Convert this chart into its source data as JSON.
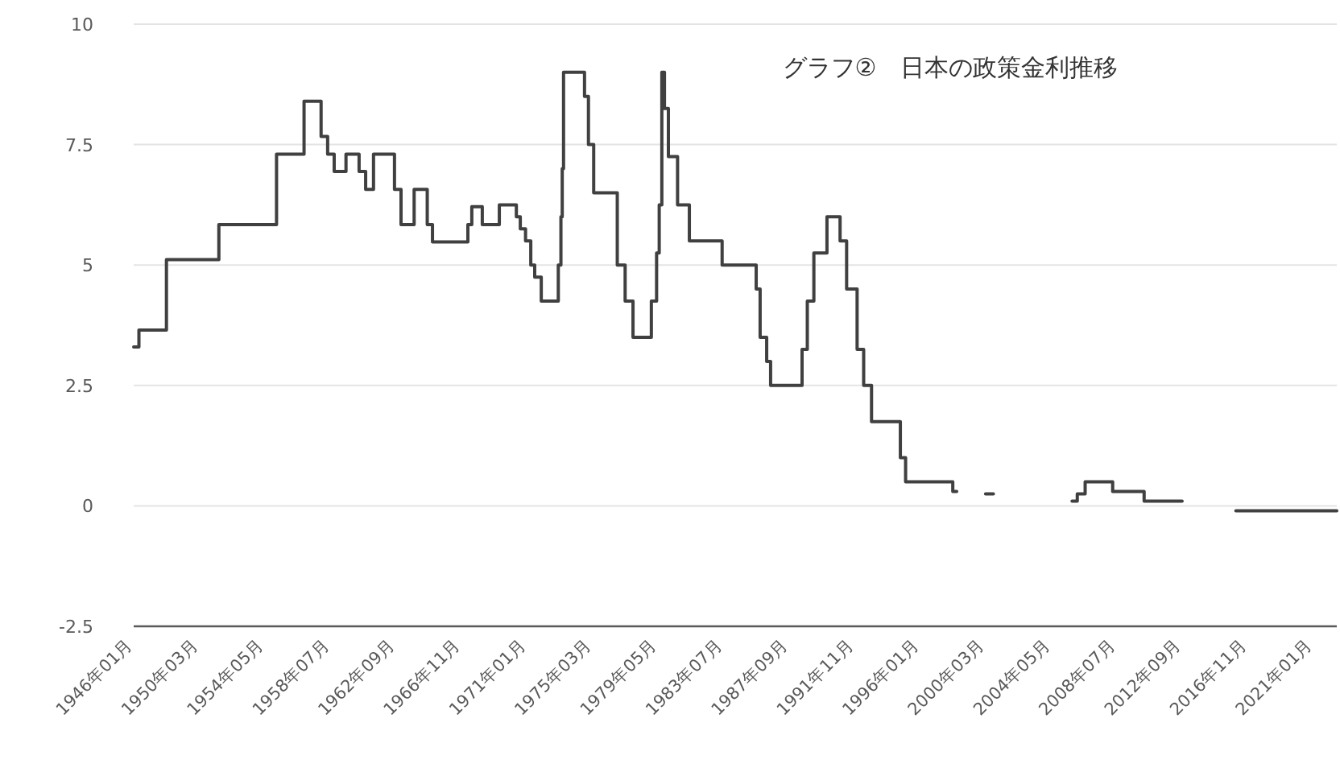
{
  "chart_data": {
    "type": "step",
    "title": "グラフ②　日本の政策金利推移",
    "x": [
      "1946-01",
      "1946-05",
      "1948-02",
      "1951-06",
      "1955-02",
      "1956-11",
      "1957-12",
      "1958-05",
      "1958-10",
      "1959-07",
      "1960-05",
      "1960-10",
      "1961-04",
      "1962-08",
      "1963-01",
      "1963-11",
      "1964-09",
      "1965-01",
      "1967-04",
      "1967-07",
      "1968-03",
      "1969-04",
      "1970-05",
      "1970-08",
      "1970-12",
      "1971-04",
      "1971-07",
      "1971-12",
      "1973-01",
      "1973-03",
      "1973-04",
      "1973-05",
      "1974-09",
      "1974-12",
      "1975-04",
      "1976-10",
      "1977-04",
      "1977-10",
      "1978-12",
      "1979-04",
      "1979-06",
      "1979-08",
      "1979-10",
      "1980-01",
      "1980-08",
      "1981-05",
      "1983-06",
      "1985-08",
      "1985-11",
      "1986-04",
      "1986-07",
      "1988-07",
      "1988-11",
      "1989-04",
      "1990-02",
      "1990-12",
      "1991-05",
      "1992-01",
      "1992-06",
      "1992-12",
      "1994-10",
      "1995-02",
      "1998-02",
      "1998-05",
      "2000-03",
      "2000-09",
      "2005-09",
      "2006-01",
      "2006-07",
      "2008-04",
      "2010-04",
      "2012-09",
      "2016-02",
      "2022-07"
    ],
    "series": [
      {
        "color": "#404040",
        "values": [
          3.3,
          3.65,
          5.11,
          5.84,
          7.3,
          8.4,
          7.67,
          7.3,
          6.94,
          7.3,
          6.94,
          6.57,
          7.3,
          6.57,
          5.84,
          6.57,
          5.84,
          5.48,
          5.84,
          6.21,
          5.84,
          6.25,
          6.0,
          5.75,
          5.5,
          5.0,
          4.75,
          4.25,
          5.0,
          6.0,
          7.0,
          9.0,
          8.5,
          7.5,
          6.5,
          5.0,
          4.25,
          3.5,
          4.25,
          5.25,
          6.25,
          9.0,
          8.25,
          7.25,
          6.25,
          5.5,
          5.0,
          4.5,
          3.5,
          3.0,
          2.5,
          3.25,
          4.25,
          5.25,
          6.0,
          5.5,
          4.5,
          3.25,
          2.5,
          1.75,
          1.0,
          0.5,
          0.3,
          null,
          0.25,
          null,
          0.1,
          0.25,
          0.5,
          0.3,
          0.1,
          null,
          -0.1,
          -0.1
        ]
      }
    ],
    "xlim": [
      "1946-01",
      "2022-07"
    ],
    "xticks": [
      {
        "value": "1946-01",
        "label": "1946年01月"
      },
      {
        "value": "1950-03",
        "label": "1950年03月"
      },
      {
        "value": "1954-05",
        "label": "1954年05月"
      },
      {
        "value": "1958-07",
        "label": "1958年07月"
      },
      {
        "value": "1962-09",
        "label": "1962年09月"
      },
      {
        "value": "1966-11",
        "label": "1966年11月"
      },
      {
        "value": "1971-01",
        "label": "1971年01月"
      },
      {
        "value": "1975-03",
        "label": "1975年03月"
      },
      {
        "value": "1979-05",
        "label": "1979年05月"
      },
      {
        "value": "1983-07",
        "label": "1983年07月"
      },
      {
        "value": "1987-09",
        "label": "1987年09月"
      },
      {
        "value": "1991-11",
        "label": "1991年11月"
      },
      {
        "value": "1996-01",
        "label": "1996年01月"
      },
      {
        "value": "2000-03",
        "label": "2000年03月"
      },
      {
        "value": "2004-05",
        "label": "2004年05月"
      },
      {
        "value": "2008-07",
        "label": "2008年07月"
      },
      {
        "value": "2012-09",
        "label": "2012年09月"
      },
      {
        "value": "2016-11",
        "label": "2016年11月"
      },
      {
        "value": "2021-01",
        "label": "2021年01月"
      }
    ],
    "ylim": [
      -2.5,
      10
    ],
    "yticks": [
      -2.5,
      0,
      {
        "value": 2.5,
        "label": "2.5"
      },
      {
        "value": 5,
        "label": "5"
      },
      {
        "value": 7.5,
        "label": "7.5"
      },
      10
    ],
    "grid": "y",
    "line_style": "solid",
    "marker": "none"
  }
}
